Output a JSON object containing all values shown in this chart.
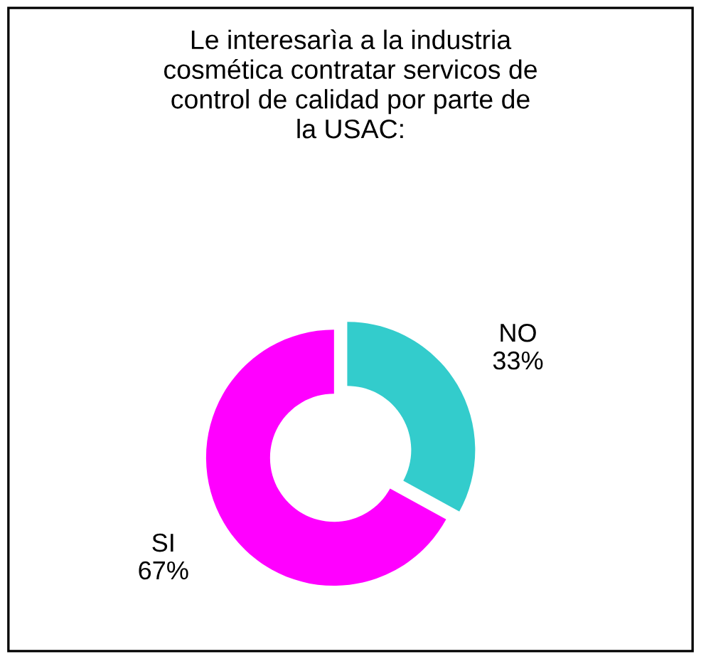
{
  "chart_data": {
    "type": "donut",
    "title": "Le interesarìa a la industria\ncosmética contratar servicos de\ncontrol de calidad por parte de\nla USAC:",
    "categories": [
      "NO",
      "SI"
    ],
    "values": [
      33,
      67
    ],
    "value_labels": [
      "33%",
      "67%"
    ],
    "colors": [
      "#33cccc",
      "#ff00ff"
    ],
    "legend": false
  }
}
